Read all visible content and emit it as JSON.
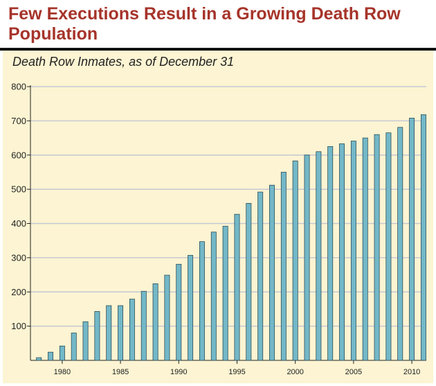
{
  "title": "Few Executions Result in a Growing Death Row Population",
  "subtitle": "Death Row Inmates, as of December 31",
  "colors": {
    "title": "#a6342a",
    "panel": "#fcf4d2",
    "bar_fill": "#73b8c8",
    "bar_stroke": "#1f3d48",
    "grid": "#c5c9d3"
  },
  "chart_data": {
    "type": "bar",
    "title": "Death Row Inmates, as of December 31",
    "xlabel": "",
    "ylabel": "",
    "categories": [
      1978,
      1979,
      1980,
      1981,
      1982,
      1983,
      1984,
      1985,
      1986,
      1987,
      1988,
      1989,
      1990,
      1991,
      1992,
      1993,
      1994,
      1995,
      1996,
      1997,
      1998,
      1999,
      2000,
      2001,
      2002,
      2003,
      2004,
      2005,
      2006,
      2007,
      2008,
      2009,
      2010,
      2011
    ],
    "values": [
      8,
      24,
      42,
      80,
      113,
      143,
      160,
      160,
      179,
      202,
      224,
      249,
      281,
      307,
      347,
      375,
      392,
      427,
      459,
      492,
      512,
      550,
      583,
      600,
      610,
      625,
      633,
      641,
      650,
      660,
      665,
      681,
      708,
      718
    ],
    "ylim": [
      0,
      800
    ],
    "yticks": [
      100,
      200,
      300,
      400,
      500,
      600,
      700,
      800
    ],
    "ytick_labels": [
      "100",
      "200",
      "300",
      "400",
      "500",
      "600",
      "700",
      "800"
    ],
    "xtick_labels": [
      "1980",
      "1985",
      "1990",
      "1995",
      "2000",
      "2005",
      "2010"
    ],
    "xtick_years": [
      1980,
      1985,
      1990,
      1995,
      2000,
      2005,
      2010
    ],
    "grid": true
  }
}
